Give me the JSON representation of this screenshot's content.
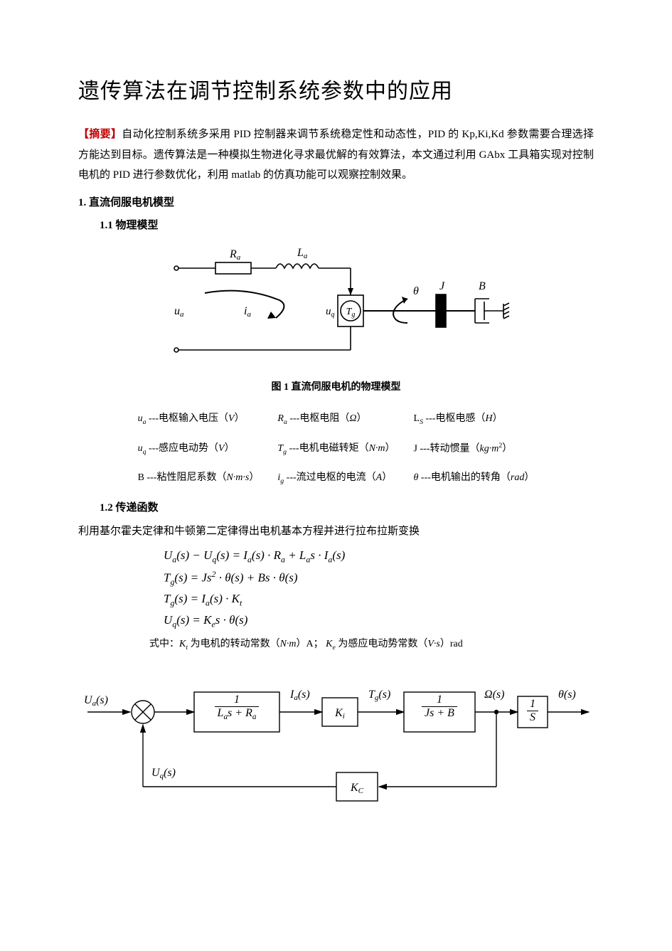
{
  "title": "遗传算法在调节控制系统参数中的应用",
  "abstract": {
    "label": "【摘要】",
    "text": "自动化控制系统多采用 PID 控制器来调节系统稳定性和动态性，PID 的 Kp,Ki,Kd 参数需要合理选择方能达到目标。遗传算法是一种模拟生物进化寻求最优解的有效算法，本文通过利用 GAbx 工具箱实现对控制电机的 PID 进行参数优化，利用 matlab 的仿真功能可以观察控制效果。"
  },
  "sec1": "1.  直流伺服电机模型",
  "sec1_1": "1.1 物理模型",
  "fig1_caption": "图 1   直流伺服电机的物理模型",
  "circuit": {
    "Ra": "R",
    "Ra_sub": "a",
    "La": "L",
    "La_sub": "a",
    "ua": "u",
    "ua_sub": "a",
    "ia": "i",
    "ia_sub": "a",
    "uq": "u",
    "uq_sub": "q",
    "Tg": "T",
    "Tg_sub": "g",
    "theta": "θ",
    "J": "J",
    "B": "B",
    "colors": {
      "stroke": "#000000",
      "bg": "#ffffff"
    },
    "line_width": 1.5
  },
  "symbols": [
    [
      {
        "sym": "u",
        "sub": "a",
        "desc": "---电枢输入电压（",
        "unit": "V",
        "tail": "）"
      },
      {
        "sym": "R",
        "sub": "a",
        "desc": "---电枢电阻（",
        "unit": "Ω",
        "tail": "）"
      },
      {
        "sym": "L",
        "sub": "S",
        "desc": "---电枢电感（",
        "unit": "H",
        "tail": "）",
        "plain_sym": true
      }
    ],
    [
      {
        "sym": "u",
        "sub": "q",
        "desc": "---感应电动势（",
        "unit": "V",
        "tail": "）"
      },
      {
        "sym": "T",
        "sub": "g",
        "desc": "---电机电磁转矩（",
        "unit": "N·m",
        "tail": "）"
      },
      {
        "sym": "J",
        "sub": "",
        "desc": "---转动惯量（",
        "unit": "kg·m",
        "sup": "2",
        "tail": "）",
        "plain_sym": true
      }
    ],
    [
      {
        "sym": "B",
        "sub": "",
        "desc": "---粘性阻尼系数（",
        "unit": "N·m·s",
        "tail": "）",
        "plain_sym": true
      },
      {
        "sym": "i",
        "sub": "g",
        "desc": "---流过电枢的电流（",
        "unit": "A",
        "tail": "）"
      },
      {
        "sym": "θ",
        "sub": "",
        "desc": "---电机输出的转角（",
        "unit": "rad",
        "tail": "）"
      }
    ]
  ],
  "sec1_2": "1.2 传递函数",
  "tf_intro": "利用基尔霍夫定律和牛顿第二定律得出电机基本方程并进行拉布拉斯变换",
  "equations": [
    "U_a(s) − U_q(s) = I_a(s)·R_a + L_a s·I_a(s)",
    "T_g(s) = Js^2·θ(s) + Bs·θ(s)",
    "T_g(s) = I_a(s)·K_t",
    "U_q(s) = K_e s·θ(s)"
  ],
  "eq_note": {
    "pre": "式中：",
    "Kt": "K",
    "Kt_sub": "t",
    "Kt_txt": " 为电机的转动常数（",
    "Kt_unit": "N·m",
    "Kt_tail": "）A；",
    "Ke": "K",
    "Ke_sub": "e",
    "Ke_txt": " 为感应电动势常数（",
    "Ke_unit": "V·s",
    "Ke_tail": "）rad"
  },
  "block": {
    "Ua": "U_a(s)",
    "Ia": "I_a(s)",
    "Tg": "T_g(s)",
    "Omega": "Ω(s)",
    "theta": "θ(s)",
    "Uq": "U_q(s)",
    "G1_num": "1",
    "G1_den": "L_a s + R_a",
    "Ki": "K_i",
    "G2_num": "1",
    "G2_den": "Js + B",
    "G3_num": "1",
    "G3_den": "S",
    "Kc": "K_C",
    "box_stroke": "#000000",
    "line_width": 1.4
  }
}
